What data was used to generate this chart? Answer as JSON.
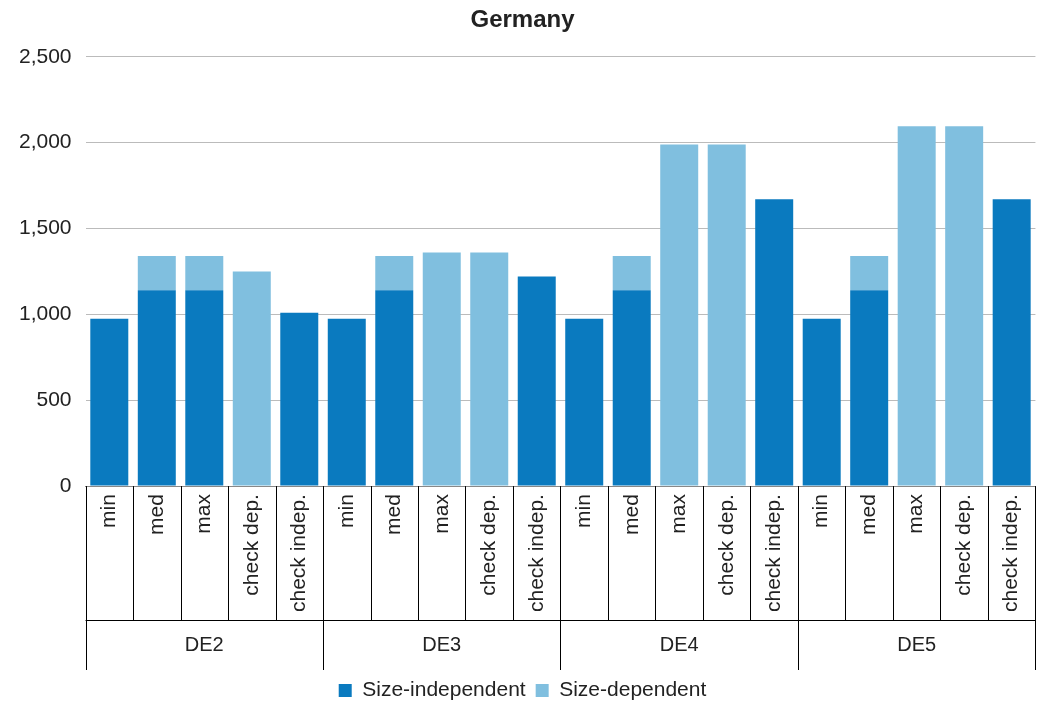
{
  "chart_data": {
    "type": "bar",
    "title": "Germany",
    "stacked": true,
    "categories": [
      "min",
      "med",
      "max",
      "check dep.",
      "check indep.",
      "min",
      "med",
      "max",
      "check dep.",
      "check indep.",
      "min",
      "med",
      "max",
      "check dep.",
      "check indep.",
      "min",
      "med",
      "max",
      "check dep.",
      "check indep."
    ],
    "series": [
      {
        "name": "Size-independent",
        "color": "#0a7abf",
        "values": [
          975,
          1140,
          1140,
          null,
          1010,
          975,
          1140,
          null,
          null,
          1220,
          975,
          1140,
          null,
          null,
          1670,
          975,
          1140,
          null,
          null,
          1670
        ]
      },
      {
        "name": "Size-dependent",
        "color": "#80bfdf",
        "values": [
          null,
          200,
          200,
          1250,
          null,
          null,
          200,
          1360,
          1360,
          null,
          null,
          200,
          1990,
          1990,
          null,
          null,
          200,
          2095,
          2095,
          null
        ]
      }
    ],
    "annotations": [
      "DE2",
      "DE3",
      "DE4",
      "DE5"
    ],
    "ylim": [
      0,
      2500
    ],
    "yticks": [
      0,
      500,
      {
        "value": 1000,
        "label": "1,000"
      },
      {
        "value": 1500,
        "label": "1,500"
      },
      {
        "value": 2000,
        "label": "2,000"
      },
      {
        "value": 2500,
        "label": "2,500"
      }
    ],
    "grid": "y",
    "legend": "bottom"
  }
}
